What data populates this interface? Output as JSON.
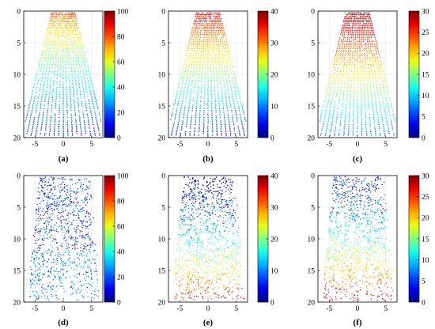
{
  "figure": {
    "panel_labels": [
      "(a)",
      "(b)",
      "(c)",
      "(d)",
      "(e)",
      "(f)"
    ]
  },
  "chart_data": [
    {
      "type": "scatter",
      "label": "(a)",
      "xlim": [
        -7,
        7
      ],
      "ylim": [
        0,
        20
      ],
      "xticks": [
        -5,
        0,
        5
      ],
      "yticks": [
        0,
        5,
        10,
        15,
        20
      ],
      "y_inverted": true,
      "grid": true,
      "colorbar": {
        "min": 0,
        "max": 100,
        "ticks": [
          0,
          20,
          40,
          60,
          80,
          100
        ],
        "colormap": "jet"
      },
      "pattern": "radial-fan",
      "value_trend": "near-high-far-low",
      "value_range": [
        15,
        85
      ]
    },
    {
      "type": "scatter",
      "label": "(b)",
      "xlim": [
        -7,
        7
      ],
      "ylim": [
        0,
        20
      ],
      "xticks": [
        -5,
        0,
        5
      ],
      "yticks": [
        0,
        5,
        10,
        15,
        20
      ],
      "y_inverted": true,
      "grid": true,
      "colorbar": {
        "min": 0,
        "max": 40,
        "ticks": [
          0,
          10,
          20,
          30,
          40
        ],
        "colormap": "jet"
      },
      "pattern": "radial-fan",
      "value_trend": "near-high-far-low",
      "value_range": [
        5,
        36
      ]
    },
    {
      "type": "scatter",
      "label": "(c)",
      "xlim": [
        -7,
        7
      ],
      "ylim": [
        0,
        20
      ],
      "xticks": [
        -5,
        0,
        5
      ],
      "yticks": [
        0,
        5,
        10,
        15,
        20
      ],
      "y_inverted": true,
      "grid": true,
      "colorbar": {
        "min": 0,
        "max": 30,
        "ticks": [
          0,
          5,
          10,
          15,
          20,
          25,
          30
        ],
        "colormap": "jet"
      },
      "pattern": "radial-fan",
      "value_trend": "near-high-far-low",
      "value_range": [
        7,
        30
      ]
    },
    {
      "type": "scatter",
      "label": "(d)",
      "xlim": [
        -7,
        7
      ],
      "ylim": [
        0,
        20
      ],
      "xticks": [
        -5,
        0,
        5
      ],
      "yticks": [
        0,
        5,
        10,
        15,
        20
      ],
      "y_inverted": true,
      "grid": true,
      "colorbar": {
        "min": 0,
        "max": 100,
        "ticks": [
          0,
          20,
          40,
          60,
          80,
          100
        ],
        "colormap": "jet"
      },
      "pattern": "crosshatch-mesh",
      "value_trend": "mostly-low",
      "value_range": [
        5,
        45
      ]
    },
    {
      "type": "scatter",
      "label": "(e)",
      "xlim": [
        -7,
        7
      ],
      "ylim": [
        0,
        20
      ],
      "xticks": [
        -5,
        0,
        5
      ],
      "yticks": [
        0,
        5,
        10,
        15,
        20
      ],
      "y_inverted": true,
      "grid": true,
      "colorbar": {
        "min": 0,
        "max": 40,
        "ticks": [
          0,
          10,
          20,
          30,
          40
        ],
        "colormap": "jet"
      },
      "pattern": "crosshatch-mesh",
      "value_trend": "near-high-far-low",
      "value_range": [
        3,
        36
      ]
    },
    {
      "type": "scatter",
      "label": "(f)",
      "xlim": [
        -7,
        7
      ],
      "ylim": [
        0,
        20
      ],
      "xticks": [
        -5,
        0,
        5
      ],
      "yticks": [
        0,
        5,
        10,
        15,
        20
      ],
      "y_inverted": true,
      "grid": true,
      "colorbar": {
        "min": 0,
        "max": 30,
        "ticks": [
          0,
          5,
          10,
          15,
          20,
          25,
          30
        ],
        "colormap": "jet"
      },
      "pattern": "crosshatch-mesh",
      "value_trend": "near-high-far-low",
      "value_range": [
        4,
        28
      ]
    }
  ]
}
